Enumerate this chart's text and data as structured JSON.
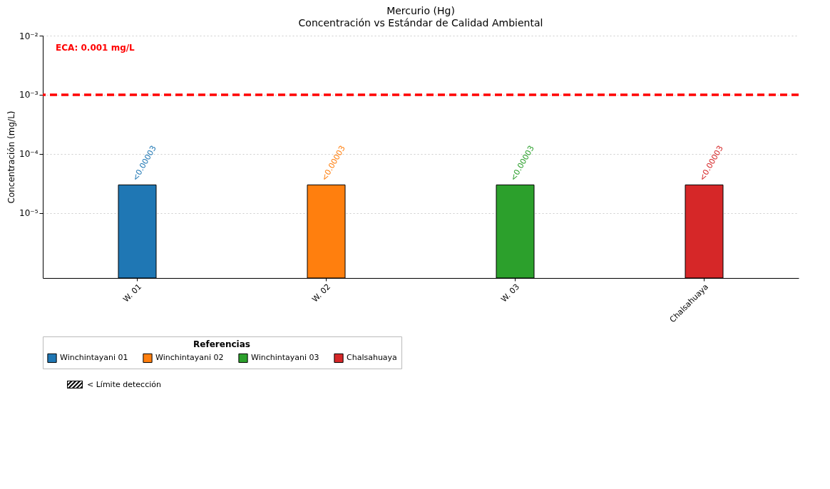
{
  "chart_data": {
    "type": "bar",
    "title": "Mercurio (Hg)",
    "subtitle": "Concentración vs Estándar de Calidad Ambiental",
    "ylabel": "Concentración (mg/L)",
    "legend_title": "Referencias",
    "categories": [
      "W. 01",
      "W. 02",
      "W. 03",
      "Chalsahuaya"
    ],
    "series": [
      {
        "name": "Winchintayani 01",
        "color": "#1f77b4",
        "values": [
          3e-05,
          null,
          null,
          null
        ],
        "value_labels": [
          "<0.00003",
          null,
          null,
          null
        ]
      },
      {
        "name": "Winchintayani 02",
        "color": "#ff7f0e",
        "values": [
          null,
          3e-05,
          null,
          null
        ],
        "value_labels": [
          null,
          "<0.00003",
          null,
          null
        ]
      },
      {
        "name": "Winchintayani 03",
        "color": "#2ca02c",
        "values": [
          null,
          null,
          3e-05,
          null
        ],
        "value_labels": [
          null,
          null,
          "<0.00003",
          null
        ]
      },
      {
        "name": "Chalsahuaya",
        "color": "#d62728",
        "values": [
          null,
          null,
          null,
          3e-05
        ],
        "value_labels": [
          null,
          null,
          null,
          "<0.00003"
        ]
      }
    ],
    "log": "y",
    "ylim": [
      8e-07,
      0.01
    ],
    "yticks": [
      {
        "value": 1e-05,
        "label": "10⁻⁵"
      },
      {
        "value": 0.0001,
        "label": "10⁻⁴"
      },
      {
        "value": 0.001,
        "label": "10⁻³"
      },
      {
        "value": 0.01,
        "label": "10⁻²"
      }
    ],
    "ref_lines": [
      {
        "axis": "y",
        "value": 0.001,
        "label": "ECA: 0.001 mg/L",
        "color": "#ff0000",
        "line_style": "dashed"
      }
    ],
    "grid": "y",
    "legend": "bottom",
    "annotations": [
      "< Límite detección"
    ]
  }
}
